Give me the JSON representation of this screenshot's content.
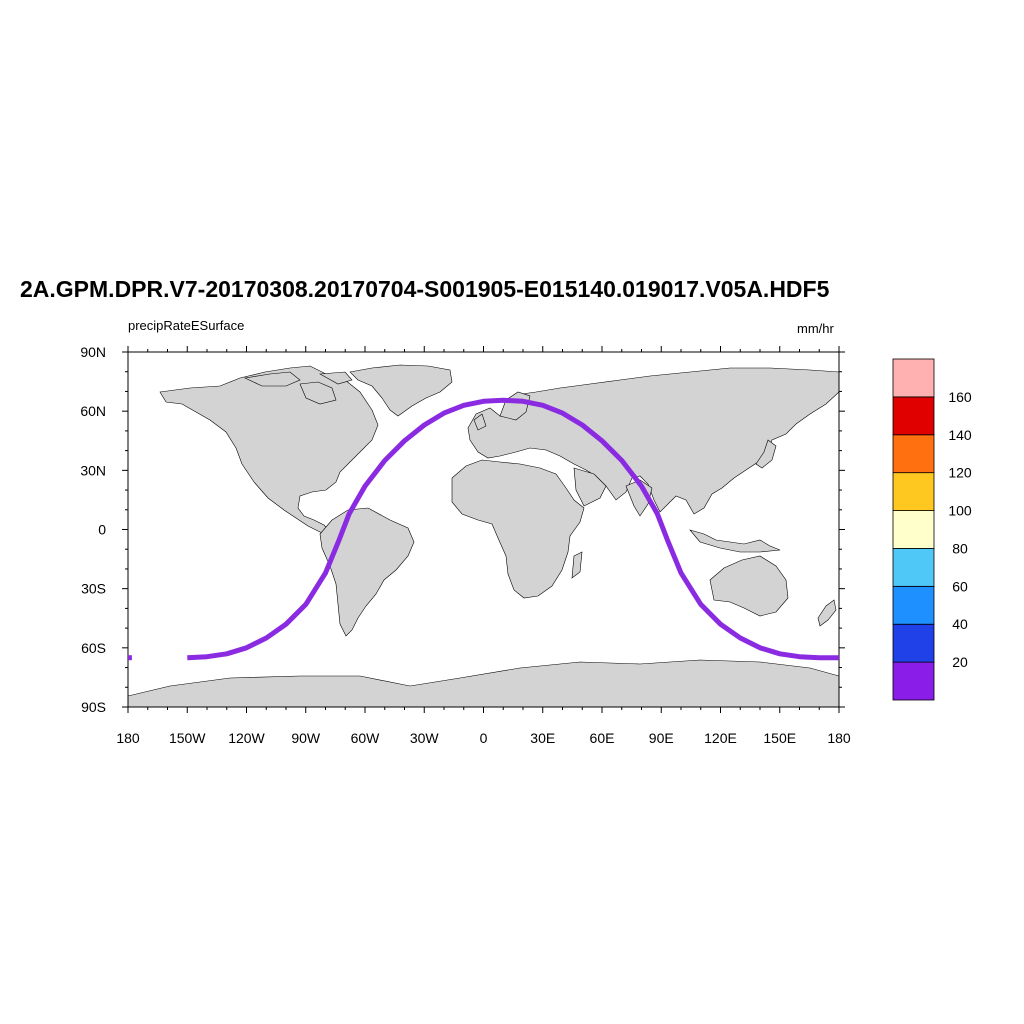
{
  "title": "2A.GPM.DPR.V7-20170308.20170704-S001905-E015140.019017.V05A.HDF5",
  "subtitle_left": "precipRateESurface",
  "subtitle_right": "mm/hr",
  "colors": {
    "land": "#d3d3d3",
    "coast": "#000000",
    "track": "#8a2be2"
  },
  "chart_data": {
    "type": "map",
    "projection": "cylindrical-equidistant",
    "lon_range": [
      -180,
      180
    ],
    "lat_range": [
      -90,
      90
    ],
    "x_tick_labels": [
      "180",
      "150W",
      "120W",
      "90W",
      "60W",
      "30W",
      "0",
      "30E",
      "60E",
      "90E",
      "120E",
      "150E",
      "180"
    ],
    "x_tick_values": [
      -180,
      -150,
      -120,
      -90,
      -60,
      -30,
      0,
      30,
      60,
      90,
      120,
      150,
      180
    ],
    "y_tick_labels": [
      "90N",
      "60N",
      "30N",
      "0",
      "30S",
      "60S",
      "90S"
    ],
    "y_tick_values": [
      90,
      60,
      30,
      0,
      -30,
      -60,
      -90
    ],
    "track": {
      "name": "precipRateESurface",
      "value_class": "0-20",
      "points_lonlat": [
        [
          -180,
          -65
        ],
        [
          -178,
          -65
        ],
        [
          -150,
          -65
        ],
        [
          -140,
          -64.5
        ],
        [
          -130,
          -63
        ],
        [
          -120,
          -60
        ],
        [
          -110,
          -55
        ],
        [
          -100,
          -48
        ],
        [
          -90,
          -38
        ],
        [
          -80,
          -22
        ],
        [
          -73,
          -5
        ],
        [
          -68,
          8
        ],
        [
          -60,
          22
        ],
        [
          -50,
          35
        ],
        [
          -40,
          45
        ],
        [
          -30,
          53
        ],
        [
          -20,
          59
        ],
        [
          -10,
          63
        ],
        [
          0,
          65
        ],
        [
          10,
          65.5
        ],
        [
          20,
          65
        ],
        [
          30,
          63
        ],
        [
          40,
          59
        ],
        [
          50,
          53
        ],
        [
          60,
          45
        ],
        [
          70,
          35
        ],
        [
          80,
          22
        ],
        [
          88,
          8
        ],
        [
          93,
          -5
        ],
        [
          100,
          -22
        ],
        [
          110,
          -38
        ],
        [
          120,
          -48
        ],
        [
          130,
          -55
        ],
        [
          140,
          -60
        ],
        [
          150,
          -63
        ],
        [
          160,
          -64.5
        ],
        [
          170,
          -65
        ],
        [
          180,
          -65
        ]
      ]
    },
    "colorbar": {
      "levels": [
        20,
        40,
        60,
        80,
        100,
        120,
        140,
        160
      ],
      "labels": [
        "20",
        "40",
        "60",
        "80",
        "100",
        "120",
        "140",
        "160"
      ],
      "colors": [
        "#8a1ee8",
        "#2040e8",
        "#1e90ff",
        "#4fc8f8",
        "#ffffcc",
        "#ffc820",
        "#ff7010",
        "#e00000",
        "#ffb0b0"
      ]
    }
  }
}
